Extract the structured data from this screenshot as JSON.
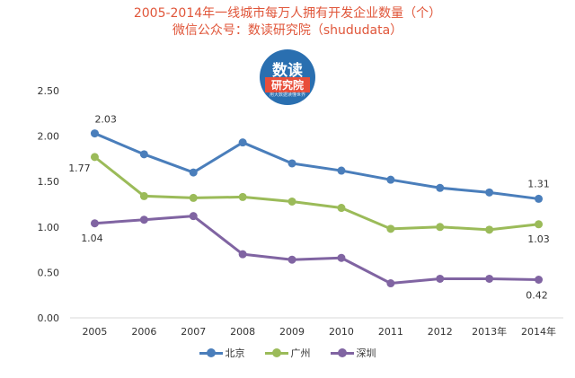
{
  "chart_data": {
    "type": "line",
    "title": "2005-2014年一线城市每万人拥有开发企业数量（个）",
    "subtitle": "微信公众号：数读研究院（shududata）",
    "categories": [
      "2005",
      "2006",
      "2007",
      "2008",
      "2009",
      "2010",
      "2011",
      "2012",
      "2013年",
      "2014年"
    ],
    "ylim": [
      0,
      2.5
    ],
    "yticks": [
      "0.00",
      "0.50",
      "1.00",
      "1.50",
      "2.00",
      "2.50"
    ],
    "grid": false,
    "legend_position": "bottom",
    "series": [
      {
        "name": "北京",
        "color": "#4a7ebb",
        "values": [
          2.03,
          1.8,
          1.6,
          1.93,
          1.7,
          1.62,
          1.52,
          1.43,
          1.38,
          1.31
        ]
      },
      {
        "name": "广州",
        "color": "#9bbb59",
        "values": [
          1.77,
          1.34,
          1.32,
          1.33,
          1.28,
          1.21,
          0.98,
          1.0,
          0.97,
          1.03
        ]
      },
      {
        "name": "深圳",
        "color": "#8064a2",
        "values": [
          1.04,
          1.08,
          1.12,
          0.7,
          0.64,
          0.66,
          0.38,
          0.43,
          0.43,
          0.42
        ]
      }
    ],
    "data_labels": [
      {
        "series": 0,
        "index": 0,
        "text": "2.03"
      },
      {
        "series": 1,
        "index": 0,
        "text": "1.77"
      },
      {
        "series": 2,
        "index": 0,
        "text": "1.04"
      },
      {
        "series": 0,
        "index": 9,
        "text": "1.31"
      },
      {
        "series": 1,
        "index": 9,
        "text": "1.03"
      },
      {
        "series": 2,
        "index": 9,
        "text": "0.42"
      }
    ]
  },
  "logo": {
    "line1": "数读",
    "line2": "研究院",
    "line3": "用大数据读懂世界"
  }
}
